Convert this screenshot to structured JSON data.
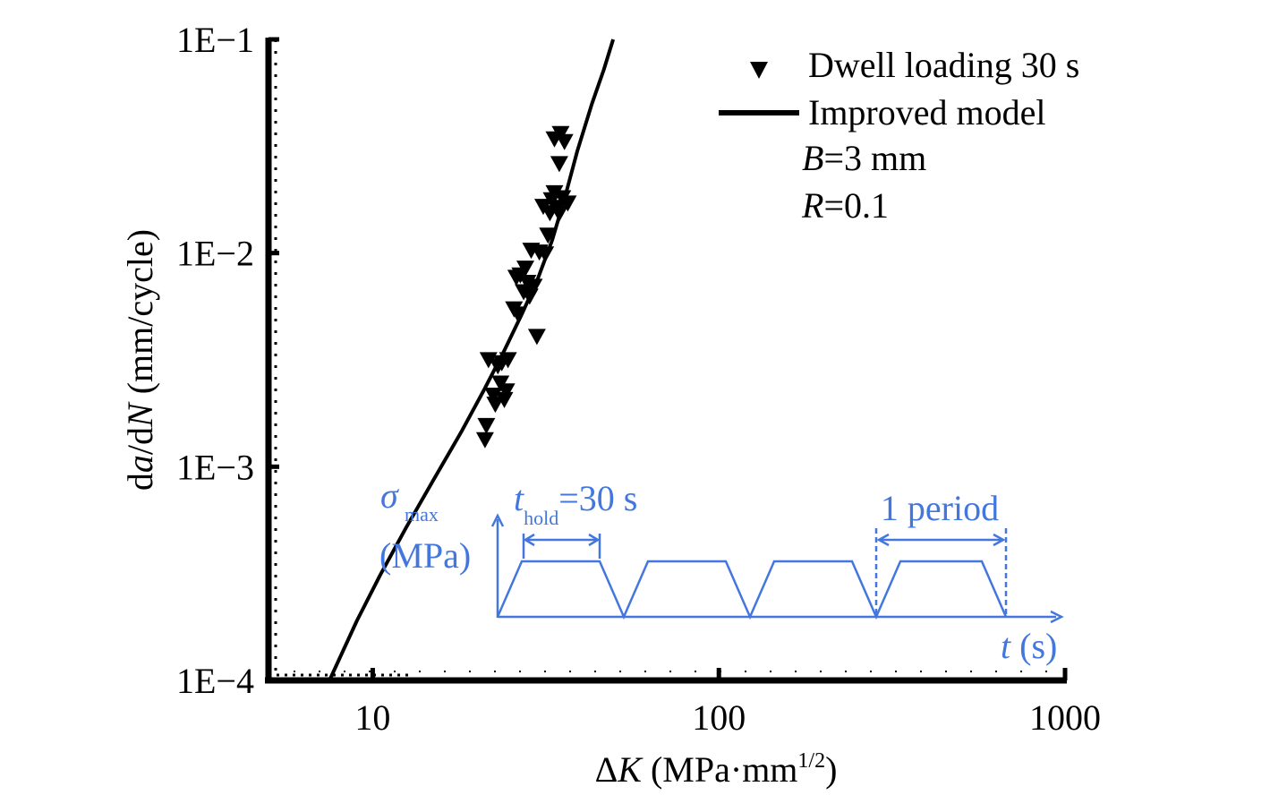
{
  "chart_data": {
    "type": "scatter",
    "x_scale": "log",
    "y_scale": "log",
    "xlim": [
      5,
      1000
    ],
    "ylim": [
      0.0001,
      0.1
    ],
    "x_ticks": [
      {
        "value": 10,
        "label": "10"
      },
      {
        "value": 100,
        "label": "100"
      },
      {
        "value": 1000,
        "label": "1000"
      }
    ],
    "y_ticks": [
      {
        "value": 0.1,
        "label": "1E−1"
      },
      {
        "value": 0.01,
        "label": "1E−2"
      },
      {
        "value": 0.001,
        "label": "1E−3"
      },
      {
        "value": 0.0001,
        "label": "1E−4"
      }
    ],
    "xlabel": {
      "prefix": "Δ",
      "var": "K",
      "unit": " (MPa·mm",
      "sup": "1/2",
      "close": ")"
    },
    "ylabel": {
      "d1": "d",
      "a": "a",
      "slash": "/d",
      "N": "N",
      "unit": " (mm/cycle)"
    },
    "grid": false,
    "legend_position": "top-right",
    "series": [
      {
        "name": "Dwell loading 30 s",
        "kind": "scatter",
        "marker": "down-triangle",
        "color": "#000000",
        "points": [
          [
            21.1,
            0.00133
          ],
          [
            21.3,
            0.00155
          ],
          [
            21.6,
            0.00315
          ],
          [
            22.3,
            0.00215
          ],
          [
            22.6,
            0.00195
          ],
          [
            23.0,
            0.00295
          ],
          [
            23.4,
            0.00245
          ],
          [
            23.6,
            0.00305
          ],
          [
            24.0,
            0.00205
          ],
          [
            24.3,
            0.00225
          ],
          [
            24.6,
            0.00315
          ],
          [
            25.6,
            0.00545
          ],
          [
            26.0,
            0.00765
          ],
          [
            26.3,
            0.00515
          ],
          [
            26.7,
            0.00785
          ],
          [
            27.3,
            0.00655
          ],
          [
            27.6,
            0.00845
          ],
          [
            28.0,
            0.00725
          ],
          [
            28.4,
            0.00625
          ],
          [
            29.2,
            0.00695
          ],
          [
            28.7,
            0.01025
          ],
          [
            29.8,
            0.00405
          ],
          [
            30.3,
            0.01005
          ],
          [
            31.1,
            0.01645
          ],
          [
            31.5,
            0.00985
          ],
          [
            32.1,
            0.01205
          ],
          [
            32.5,
            0.01535
          ],
          [
            32.9,
            0.01765
          ],
          [
            33.5,
            0.01905
          ],
          [
            33.5,
            0.03405
          ],
          [
            33.9,
            0.01625
          ],
          [
            34.6,
            0.01525
          ],
          [
            34.6,
            0.02605
          ],
          [
            34.9,
            0.03605
          ],
          [
            35.3,
            0.01805
          ],
          [
            35.8,
            0.03305
          ],
          [
            36.6,
            0.01705
          ]
        ]
      },
      {
        "name": "Improved model",
        "kind": "line",
        "color": "#000000",
        "points": [
          [
            7.5,
            0.0001
          ],
          [
            9.0,
            0.00019
          ],
          [
            10.5,
            0.00031
          ],
          [
            12.5,
            0.00052
          ],
          [
            15.0,
            0.00087
          ],
          [
            18.0,
            0.00145
          ],
          [
            21.0,
            0.0023
          ],
          [
            24.0,
            0.0035
          ],
          [
            27.0,
            0.0052
          ],
          [
            30.0,
            0.0076
          ],
          [
            33.0,
            0.0115
          ],
          [
            36.0,
            0.0185
          ],
          [
            39.0,
            0.03
          ],
          [
            43.0,
            0.05
          ],
          [
            46.5,
            0.072
          ],
          [
            49.5,
            0.1
          ]
        ]
      }
    ],
    "annotations": [
      {
        "var": "B",
        "rest": "=3 mm"
      },
      {
        "var": "R",
        "rest": "=0.1"
      }
    ],
    "inset": {
      "color": "#4477dd",
      "y_label_sigma": "σ",
      "y_label_sub": "max",
      "y_label_unit": "(MPa)",
      "hold_t": "t",
      "hold_sub": "hold",
      "hold_rest": "=30 s",
      "period_label": "1 period",
      "x_label_t": "t",
      "x_label_unit": " (s)"
    }
  }
}
